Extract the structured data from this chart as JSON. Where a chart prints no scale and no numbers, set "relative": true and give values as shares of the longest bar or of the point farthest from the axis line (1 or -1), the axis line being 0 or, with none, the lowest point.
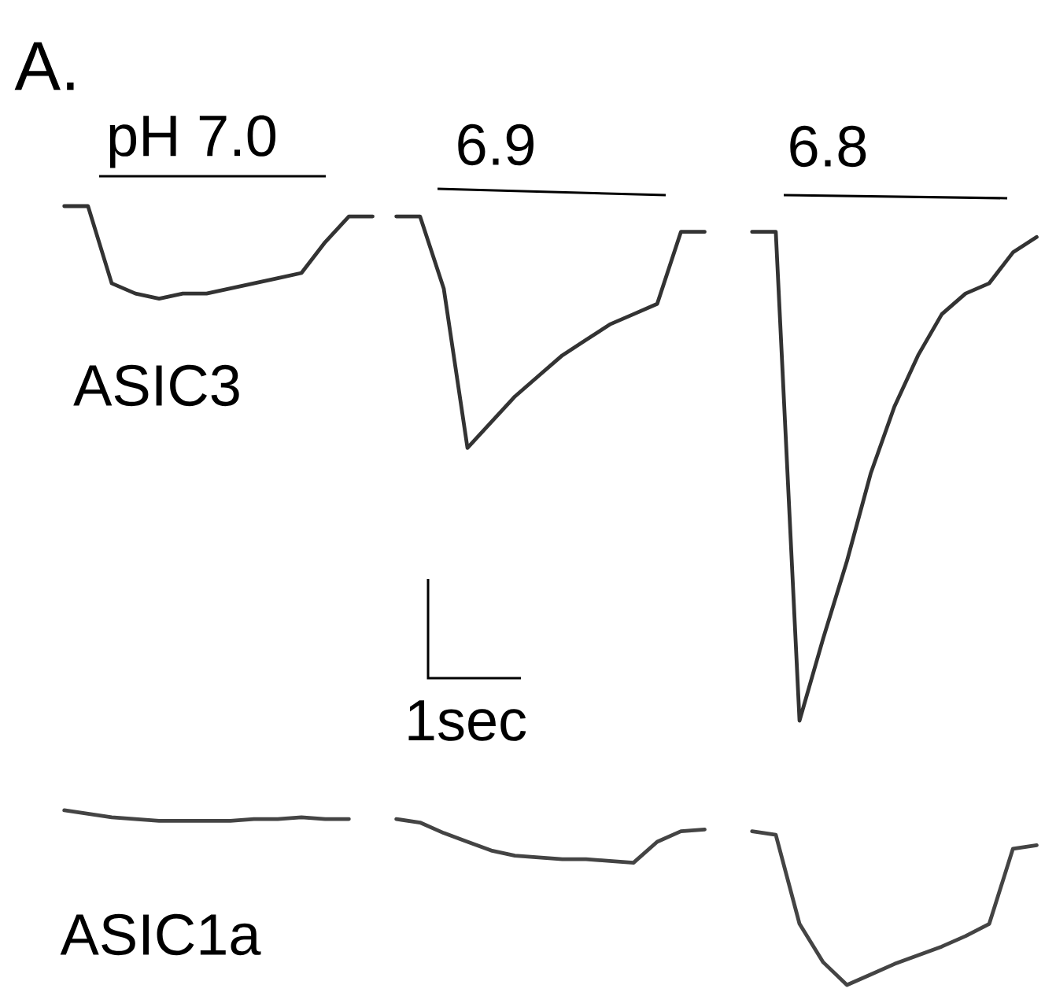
{
  "chart_data": [
    {
      "type": "line",
      "title": "A.",
      "relative": true,
      "annotations": [
        "pH 7.0",
        "6.9",
        "6.8",
        "ASIC3",
        "1sec"
      ],
      "categories": [
        null,
        null,
        null,
        null,
        null,
        null,
        null,
        null,
        null,
        null,
        null,
        null,
        null,
        null,
        null,
        null,
        null,
        null,
        null,
        null,
        null,
        null,
        null,
        null,
        null,
        null,
        null,
        null,
        null,
        null,
        null,
        null,
        null,
        null,
        null,
        null,
        null,
        null,
        null,
        null,
        null,
        null,
        null,
        null
      ],
      "series": [
        {
          "color": "#333333",
          "values": [
            null,
            null,
            1.0,
            1.0,
            0.85,
            0.83,
            0.82,
            0.83,
            0.83,
            0.84,
            0.85,
            0.86,
            0.87,
            0.93,
            0.98,
            0.98,
            null,
            null,
            null,
            null,
            null,
            null,
            null,
            null,
            null,
            null,
            null,
            null,
            null,
            null,
            null,
            null,
            null,
            null,
            null,
            null,
            null,
            null,
            null,
            null,
            null,
            null,
            null,
            null
          ]
        },
        {
          "color": "#333333",
          "values": [
            null,
            null,
            null,
            null,
            null,
            null,
            null,
            null,
            null,
            null,
            null,
            null,
            null,
            null,
            null,
            null,
            0.98,
            0.98,
            0.84,
            0.53,
            0.58,
            0.63,
            0.67,
            0.71,
            0.74,
            0.77,
            0.79,
            0.81,
            0.95,
            0.95,
            null,
            null,
            null,
            null,
            null,
            null,
            null,
            null,
            null,
            null,
            null,
            null,
            null,
            null
          ]
        },
        {
          "color": "#333333",
          "values": [
            null,
            null,
            null,
            null,
            null,
            null,
            null,
            null,
            null,
            null,
            null,
            null,
            null,
            null,
            null,
            null,
            null,
            null,
            null,
            null,
            null,
            null,
            null,
            null,
            null,
            null,
            null,
            null,
            null,
            null,
            null,
            0.95,
            0.95,
            0.0,
            0.16,
            0.31,
            0.48,
            0.61,
            0.71,
            0.79,
            0.83,
            0.85,
            0.91,
            0.94
          ]
        }
      ]
    },
    {
      "type": "line",
      "relative": true,
      "annotations": [
        "ASIC1a"
      ],
      "categories": [
        null,
        null,
        null,
        null,
        null,
        null,
        null,
        null,
        null,
        null,
        null,
        null,
        null,
        null,
        null,
        null,
        null,
        null,
        null,
        null,
        null,
        null,
        null,
        null,
        null,
        null,
        null,
        null,
        null,
        null,
        null,
        null,
        null,
        null,
        null,
        null,
        null,
        null,
        null,
        null,
        null,
        null,
        null,
        null
      ],
      "series": [
        {
          "color": "#444444",
          "values": [
            null,
            null,
            1.0,
            0.98,
            0.96,
            0.95,
            0.94,
            0.94,
            0.94,
            0.94,
            0.95,
            0.95,
            0.96,
            0.95,
            0.95,
            null,
            null,
            null,
            null,
            null,
            null,
            null,
            null,
            null,
            null,
            null,
            null,
            null,
            null,
            null,
            null,
            null,
            null,
            null,
            null,
            null,
            null,
            null,
            null,
            null,
            null,
            null,
            null,
            null
          ]
        },
        {
          "color": "#444444",
          "values": [
            null,
            null,
            null,
            null,
            null,
            null,
            null,
            null,
            null,
            null,
            null,
            null,
            null,
            null,
            null,
            null,
            0.95,
            0.93,
            0.87,
            0.82,
            0.77,
            0.74,
            0.73,
            0.72,
            0.72,
            0.71,
            0.7,
            0.82,
            0.88,
            0.89,
            null,
            null,
            null,
            null,
            null,
            null,
            null,
            null,
            null,
            null,
            null,
            null,
            null,
            null
          ]
        },
        {
          "color": "#444444",
          "values": [
            null,
            null,
            null,
            null,
            null,
            null,
            null,
            null,
            null,
            null,
            null,
            null,
            null,
            null,
            null,
            null,
            null,
            null,
            null,
            null,
            null,
            null,
            null,
            null,
            null,
            null,
            null,
            null,
            null,
            null,
            null,
            0.88,
            0.86,
            0.35,
            0.13,
            0.0,
            0.06,
            0.12,
            0.17,
            0.22,
            0.28,
            0.35,
            0.78,
            0.8
          ]
        }
      ]
    }
  ]
}
